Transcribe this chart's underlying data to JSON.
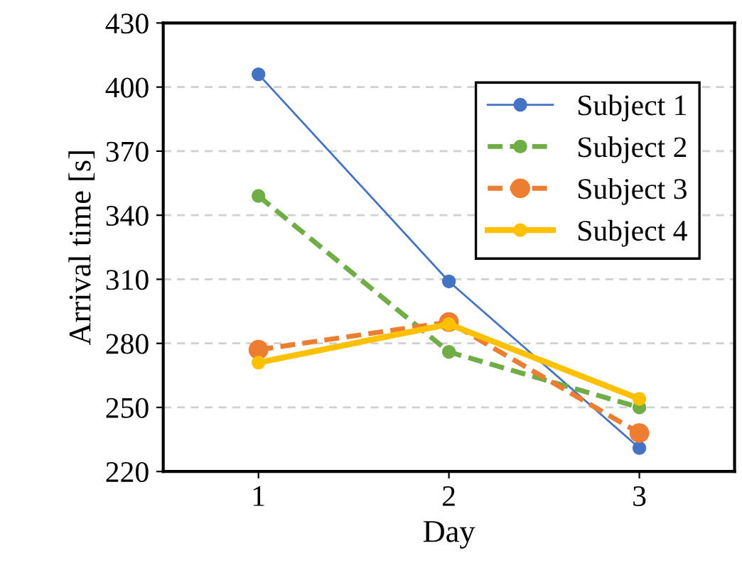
{
  "chart_data": {
    "type": "line",
    "xlabel": "Day",
    "ylabel": "Arrival time [s]",
    "categories": [
      "1",
      "2",
      "3"
    ],
    "series": [
      {
        "name": "Subject 1",
        "color": "#4472c4",
        "values": [
          406,
          309,
          231
        ],
        "line_style": "solid"
      },
      {
        "name": "Subject 2",
        "color": "#70ad47",
        "values": [
          349,
          276,
          250
        ],
        "line_style": "dashed"
      },
      {
        "name": "Subject 3",
        "color": "#ed7d31",
        "values": [
          277,
          290,
          238
        ],
        "line_style": "dashed"
      },
      {
        "name": "Subject 4",
        "color": "#ffc000",
        "values": [
          271,
          289,
          254
        ],
        "line_style": "solid"
      }
    ],
    "ylim": [
      220,
      430
    ],
    "yticks": [
      220,
      250,
      280,
      310,
      340,
      370,
      400,
      430
    ],
    "grid": "y",
    "legend": "top right",
    "marker": "circle"
  }
}
